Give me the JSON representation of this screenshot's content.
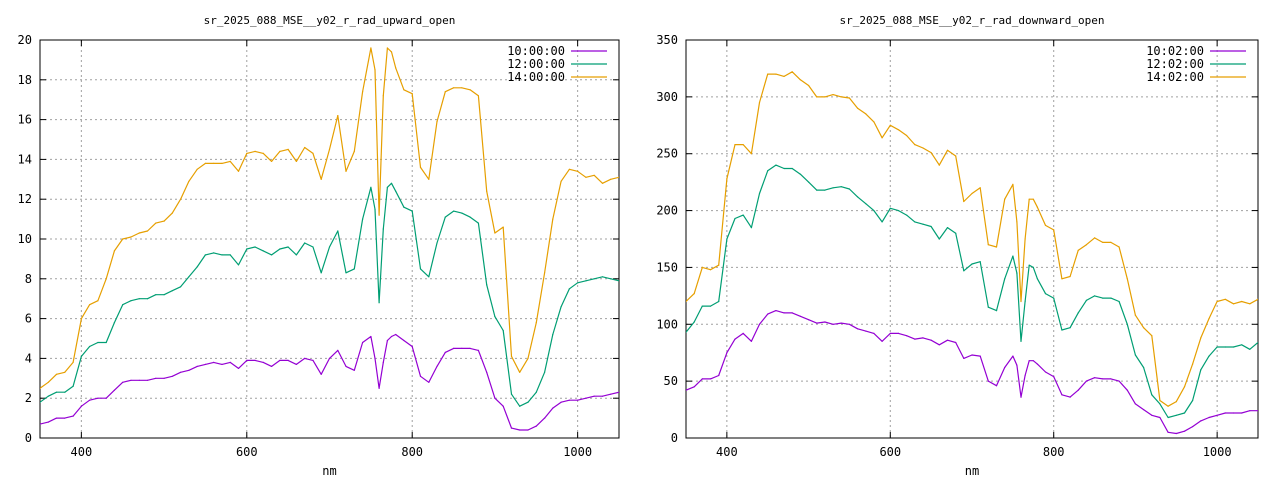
{
  "chart_data": [
    {
      "type": "line",
      "title": "sr_2025_088_MSE__y02_r_rad_upward_open",
      "xlabel": "nm",
      "ylabel": "",
      "xlim": [
        350,
        1050
      ],
      "ylim": [
        0,
        20
      ],
      "xticks": [
        400,
        600,
        800,
        1000
      ],
      "yticks": [
        0,
        2,
        4,
        6,
        8,
        10,
        12,
        14,
        16,
        18,
        20
      ],
      "grid": true,
      "legend_position": "top-right",
      "series": [
        {
          "name": "10:00:00",
          "color": "#9400d3",
          "x": [
            350,
            360,
            370,
            380,
            390,
            400,
            410,
            420,
            430,
            440,
            450,
            460,
            470,
            480,
            490,
            500,
            510,
            520,
            530,
            540,
            550,
            560,
            570,
            580,
            590,
            600,
            610,
            620,
            630,
            640,
            650,
            660,
            670,
            680,
            690,
            700,
            710,
            720,
            730,
            740,
            750,
            755,
            760,
            765,
            770,
            775,
            780,
            790,
            800,
            810,
            820,
            830,
            840,
            850,
            860,
            870,
            880,
            890,
            900,
            910,
            920,
            930,
            940,
            950,
            960,
            970,
            980,
            990,
            1000,
            1010,
            1020,
            1030,
            1040,
            1050
          ],
          "y": [
            0.7,
            0.8,
            1.0,
            1.0,
            1.1,
            1.6,
            1.9,
            2.0,
            2.0,
            2.4,
            2.8,
            2.9,
            2.9,
            2.9,
            3.0,
            3.0,
            3.1,
            3.3,
            3.4,
            3.6,
            3.7,
            3.8,
            3.7,
            3.8,
            3.5,
            3.9,
            3.9,
            3.8,
            3.6,
            3.9,
            3.9,
            3.7,
            4.0,
            3.9,
            3.2,
            4.0,
            4.4,
            3.6,
            3.4,
            4.8,
            5.1,
            4.0,
            2.5,
            3.8,
            4.9,
            5.1,
            5.2,
            4.9,
            4.6,
            3.1,
            2.8,
            3.6,
            4.3,
            4.5,
            4.5,
            4.5,
            4.4,
            3.3,
            2.0,
            1.6,
            0.5,
            0.4,
            0.4,
            0.6,
            1.0,
            1.5,
            1.8,
            1.9,
            1.9,
            2.0,
            2.1,
            2.1,
            2.2,
            2.3
          ]
        },
        {
          "name": "12:00:00",
          "color": "#009e73",
          "x": [
            350,
            360,
            370,
            380,
            390,
            400,
            410,
            420,
            430,
            440,
            450,
            460,
            470,
            480,
            490,
            500,
            510,
            520,
            530,
            540,
            550,
            560,
            570,
            580,
            590,
            600,
            610,
            620,
            630,
            640,
            650,
            660,
            670,
            680,
            690,
            700,
            710,
            720,
            730,
            740,
            750,
            755,
            760,
            765,
            770,
            775,
            780,
            790,
            800,
            810,
            820,
            830,
            840,
            850,
            860,
            870,
            880,
            890,
            900,
            910,
            920,
            930,
            940,
            950,
            960,
            970,
            980,
            990,
            1000,
            1010,
            1020,
            1030,
            1040,
            1050
          ],
          "y": [
            1.8,
            2.1,
            2.3,
            2.3,
            2.6,
            4.1,
            4.6,
            4.8,
            4.8,
            5.8,
            6.7,
            6.9,
            7.0,
            7.0,
            7.2,
            7.2,
            7.4,
            7.6,
            8.1,
            8.6,
            9.2,
            9.3,
            9.2,
            9.2,
            8.7,
            9.5,
            9.6,
            9.4,
            9.2,
            9.5,
            9.6,
            9.2,
            9.8,
            9.6,
            8.3,
            9.6,
            10.4,
            8.3,
            8.5,
            11.0,
            12.6,
            11.5,
            6.8,
            10.5,
            12.6,
            12.8,
            12.4,
            11.6,
            11.4,
            8.5,
            8.1,
            9.8,
            11.1,
            11.4,
            11.3,
            11.1,
            10.8,
            7.7,
            6.1,
            5.4,
            2.2,
            1.6,
            1.8,
            2.3,
            3.3,
            5.2,
            6.6,
            7.5,
            7.8,
            7.9,
            8.0,
            8.1,
            8.0,
            7.9
          ]
        },
        {
          "name": "14:00:00",
          "color": "#e69f00",
          "x": [
            350,
            360,
            370,
            380,
            390,
            400,
            410,
            420,
            430,
            440,
            450,
            460,
            470,
            480,
            490,
            500,
            510,
            520,
            530,
            540,
            550,
            560,
            570,
            580,
            590,
            600,
            610,
            620,
            630,
            640,
            650,
            660,
            670,
            680,
            690,
            700,
            710,
            720,
            730,
            740,
            750,
            755,
            760,
            765,
            770,
            775,
            780,
            790,
            800,
            810,
            820,
            830,
            840,
            850,
            860,
            870,
            880,
            890,
            900,
            910,
            920,
            930,
            940,
            950,
            960,
            970,
            980,
            990,
            1000,
            1010,
            1020,
            1030,
            1040,
            1050
          ],
          "y": [
            2.5,
            2.8,
            3.2,
            3.3,
            3.8,
            6.0,
            6.7,
            6.9,
            8.0,
            9.4,
            10.0,
            10.1,
            10.3,
            10.4,
            10.8,
            10.9,
            11.3,
            12.0,
            12.9,
            13.5,
            13.8,
            13.8,
            13.8,
            13.9,
            13.4,
            14.3,
            14.4,
            14.3,
            13.9,
            14.4,
            14.5,
            13.9,
            14.6,
            14.3,
            13.0,
            14.5,
            16.2,
            13.4,
            14.4,
            17.4,
            19.6,
            18.5,
            11.2,
            17.2,
            19.6,
            19.4,
            18.6,
            17.5,
            17.3,
            13.6,
            13.0,
            15.9,
            17.4,
            17.6,
            17.6,
            17.5,
            17.2,
            12.4,
            10.3,
            10.6,
            4.1,
            3.3,
            4.0,
            5.8,
            8.3,
            11.0,
            12.9,
            13.5,
            13.4,
            13.1,
            13.2,
            12.8,
            13.0,
            13.1
          ]
        }
      ]
    },
    {
      "type": "line",
      "title": "sr_2025_088_MSE__y02_r_rad_downward_open",
      "xlabel": "nm",
      "ylabel": "",
      "xlim": [
        350,
        1050
      ],
      "ylim": [
        0,
        350
      ],
      "xticks": [
        400,
        600,
        800,
        1000
      ],
      "yticks": [
        0,
        50,
        100,
        150,
        200,
        250,
        300,
        350
      ],
      "grid": true,
      "legend_position": "top-right",
      "series": [
        {
          "name": "10:02:00",
          "color": "#9400d3",
          "x": [
            350,
            360,
            370,
            380,
            390,
            400,
            410,
            420,
            430,
            440,
            450,
            460,
            470,
            480,
            490,
            500,
            510,
            520,
            530,
            540,
            550,
            560,
            570,
            580,
            590,
            600,
            610,
            620,
            630,
            640,
            650,
            660,
            670,
            680,
            690,
            700,
            710,
            720,
            730,
            740,
            750,
            755,
            760,
            765,
            770,
            775,
            780,
            790,
            800,
            810,
            820,
            830,
            840,
            850,
            860,
            870,
            880,
            890,
            900,
            910,
            920,
            930,
            940,
            950,
            960,
            970,
            980,
            990,
            1000,
            1010,
            1020,
            1030,
            1040,
            1050
          ],
          "y": [
            42,
            45,
            52,
            52,
            55,
            75,
            87,
            92,
            85,
            100,
            109,
            112,
            110,
            110,
            107,
            104,
            101,
            102,
            100,
            101,
            100,
            96,
            94,
            92,
            85,
            92,
            92,
            90,
            87,
            88,
            86,
            82,
            86,
            84,
            70,
            73,
            72,
            50,
            46,
            62,
            72,
            64,
            36,
            55,
            68,
            68,
            65,
            58,
            54,
            38,
            36,
            42,
            50,
            53,
            52,
            52,
            50,
            42,
            30,
            25,
            20,
            18,
            5,
            4,
            6,
            10,
            15,
            18,
            20,
            22,
            22,
            22,
            24,
            24
          ]
        },
        {
          "name": "12:02:00",
          "color": "#009e73",
          "x": [
            350,
            360,
            370,
            380,
            390,
            400,
            410,
            420,
            430,
            440,
            450,
            460,
            470,
            480,
            490,
            500,
            510,
            520,
            530,
            540,
            550,
            560,
            570,
            580,
            590,
            600,
            610,
            620,
            630,
            640,
            650,
            660,
            670,
            680,
            690,
            700,
            710,
            720,
            730,
            740,
            750,
            755,
            760,
            765,
            770,
            775,
            780,
            790,
            800,
            810,
            820,
            830,
            840,
            850,
            860,
            870,
            880,
            890,
            900,
            910,
            920,
            930,
            940,
            950,
            960,
            970,
            980,
            990,
            1000,
            1010,
            1020,
            1030,
            1040,
            1050
          ],
          "y": [
            93,
            102,
            116,
            116,
            120,
            175,
            193,
            196,
            185,
            215,
            235,
            240,
            237,
            237,
            232,
            225,
            218,
            218,
            220,
            221,
            219,
            212,
            206,
            200,
            190,
            202,
            200,
            196,
            190,
            188,
            186,
            175,
            185,
            180,
            147,
            153,
            155,
            115,
            112,
            140,
            160,
            145,
            85,
            120,
            152,
            150,
            140,
            127,
            123,
            95,
            97,
            110,
            121,
            125,
            123,
            123,
            120,
            100,
            73,
            62,
            38,
            30,
            18,
            20,
            22,
            33,
            60,
            72,
            80,
            80,
            80,
            82,
            78,
            84
          ]
        },
        {
          "name": "14:02:00",
          "color": "#e69f00",
          "x": [
            350,
            360,
            370,
            380,
            390,
            400,
            410,
            420,
            430,
            440,
            450,
            460,
            470,
            480,
            490,
            500,
            510,
            520,
            530,
            540,
            550,
            560,
            570,
            580,
            590,
            600,
            610,
            620,
            630,
            640,
            650,
            660,
            670,
            680,
            690,
            700,
            710,
            720,
            730,
            740,
            750,
            755,
            760,
            765,
            770,
            775,
            780,
            790,
            800,
            810,
            820,
            830,
            840,
            850,
            860,
            870,
            880,
            890,
            900,
            910,
            920,
            930,
            940,
            950,
            960,
            970,
            980,
            990,
            1000,
            1010,
            1020,
            1030,
            1040,
            1050
          ],
          "y": [
            120,
            127,
            150,
            148,
            152,
            228,
            258,
            258,
            250,
            295,
            320,
            320,
            318,
            322,
            315,
            310,
            300,
            300,
            302,
            300,
            299,
            290,
            285,
            278,
            264,
            275,
            271,
            266,
            258,
            255,
            251,
            240,
            253,
            248,
            208,
            215,
            220,
            170,
            168,
            210,
            223,
            190,
            120,
            175,
            210,
            210,
            203,
            187,
            183,
            140,
            142,
            165,
            170,
            176,
            172,
            172,
            168,
            140,
            108,
            97,
            90,
            33,
            28,
            32,
            45,
            65,
            88,
            105,
            120,
            122,
            118,
            120,
            118,
            122
          ]
        }
      ]
    }
  ]
}
